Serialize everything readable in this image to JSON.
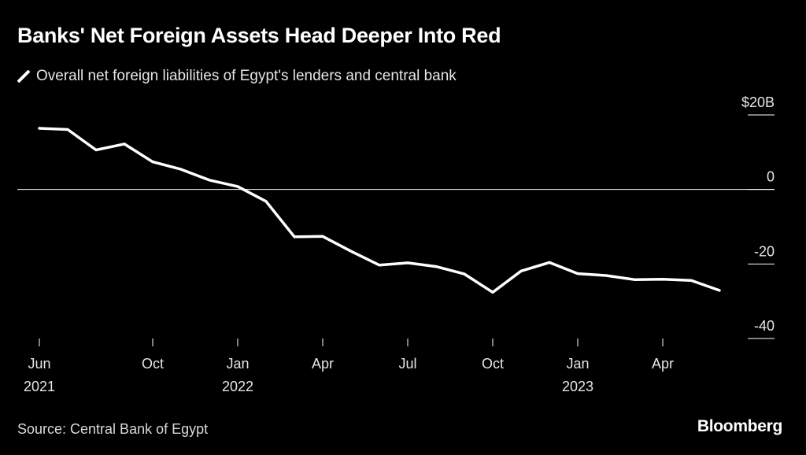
{
  "header": {
    "title": "Banks' Net Foreign Assets Head Deeper Into Red",
    "legend_label": "Overall net foreign liabilities of Egypt's lenders and central bank"
  },
  "footer": {
    "source": "Source: Central Bank of Egypt",
    "brand": "Bloomberg"
  },
  "colors": {
    "background": "#000000",
    "line": "#ffffff",
    "text": "#e6e6e6"
  },
  "chart_data": {
    "type": "line",
    "title": "Banks' Net Foreign Assets Head Deeper Into Red",
    "xlabel": "",
    "ylabel": "",
    "ylim": [
      -40,
      20
    ],
    "y_ticks": [
      {
        "value": 20,
        "label": "$20B"
      },
      {
        "value": 0,
        "label": "0"
      },
      {
        "value": -20,
        "label": "-20"
      },
      {
        "value": -40,
        "label": "-40"
      }
    ],
    "x_ticks": [
      {
        "index": 0,
        "month": "Jun",
        "year": "2021"
      },
      {
        "index": 4,
        "month": "Oct",
        "year": ""
      },
      {
        "index": 7,
        "month": "Jan",
        "year": "2022"
      },
      {
        "index": 10,
        "month": "Apr",
        "year": ""
      },
      {
        "index": 13,
        "month": "Jul",
        "year": ""
      },
      {
        "index": 16,
        "month": "Oct",
        "year": ""
      },
      {
        "index": 19,
        "month": "Jan",
        "year": "2023"
      },
      {
        "index": 22,
        "month": "Apr",
        "year": ""
      }
    ],
    "zero_line": true,
    "series": [
      {
        "name": "Overall net foreign liabilities of Egypt's lenders and central bank",
        "x": [
          "2021-06",
          "2021-07",
          "2021-08",
          "2021-09",
          "2021-10",
          "2021-11",
          "2021-12",
          "2022-01",
          "2022-02",
          "2022-03",
          "2022-04",
          "2022-05",
          "2022-06",
          "2022-07",
          "2022-08",
          "2022-09",
          "2022-10",
          "2022-11",
          "2022-12",
          "2023-01",
          "2023-02",
          "2023-03",
          "2023-04",
          "2023-05",
          "2023-06"
        ],
        "values": [
          16.4,
          16.1,
          10.6,
          12.2,
          7.4,
          5.4,
          2.5,
          0.8,
          -3.2,
          -12.7,
          -12.6,
          -16.6,
          -20.3,
          -19.7,
          -20.7,
          -22.7,
          -27.6,
          -21.9,
          -19.6,
          -22.6,
          -23.1,
          -24.2,
          -24.1,
          -24.4,
          -27.1
        ]
      }
    ]
  }
}
